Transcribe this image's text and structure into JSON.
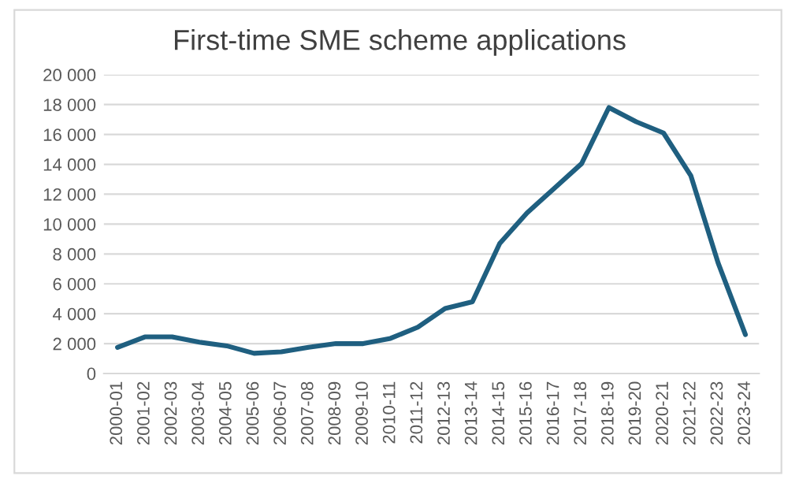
{
  "chart_data": {
    "type": "line",
    "title": "First-time SME scheme applications",
    "categories": [
      "2000-01",
      "2001-02",
      "2002-03",
      "2003-04",
      "2004-05",
      "2005-06",
      "2006-07",
      "2007-08",
      "2008-09",
      "2009-10",
      "2010-11",
      "2011-12",
      "2012-13",
      "2013-14",
      "2014-15",
      "2015-16",
      "2016-17",
      "2017-18",
      "2018-19",
      "2019-20",
      "2020-21",
      "2021-22",
      "2022-23",
      "2023-24"
    ],
    "series": [
      {
        "color": "#1f5f80",
        "values": [
          1750,
          2450,
          2450,
          2100,
          1850,
          1350,
          1450,
          1750,
          2000,
          2000,
          2350,
          3100,
          4350,
          4800,
          8700,
          10750,
          12400,
          14050,
          17800,
          16850,
          16100,
          13250,
          7400,
          2600
        ]
      }
    ],
    "ylim": [
      0,
      20000
    ],
    "yticks": [
      {
        "value": 0,
        "label": "0"
      },
      {
        "value": 2000,
        "label": "2 000"
      },
      {
        "value": 4000,
        "label": "4 000"
      },
      {
        "value": 6000,
        "label": "6 000"
      },
      {
        "value": 8000,
        "label": "8 000"
      },
      {
        "value": 10000,
        "label": "10 000"
      },
      {
        "value": 12000,
        "label": "12 000"
      },
      {
        "value": 14000,
        "label": "14 000"
      },
      {
        "value": 16000,
        "label": "16 000"
      },
      {
        "value": 18000,
        "label": "18 000"
      },
      {
        "value": 20000,
        "label": "20 000"
      }
    ],
    "grid": "y",
    "marker": "none",
    "line_style": "solid"
  }
}
